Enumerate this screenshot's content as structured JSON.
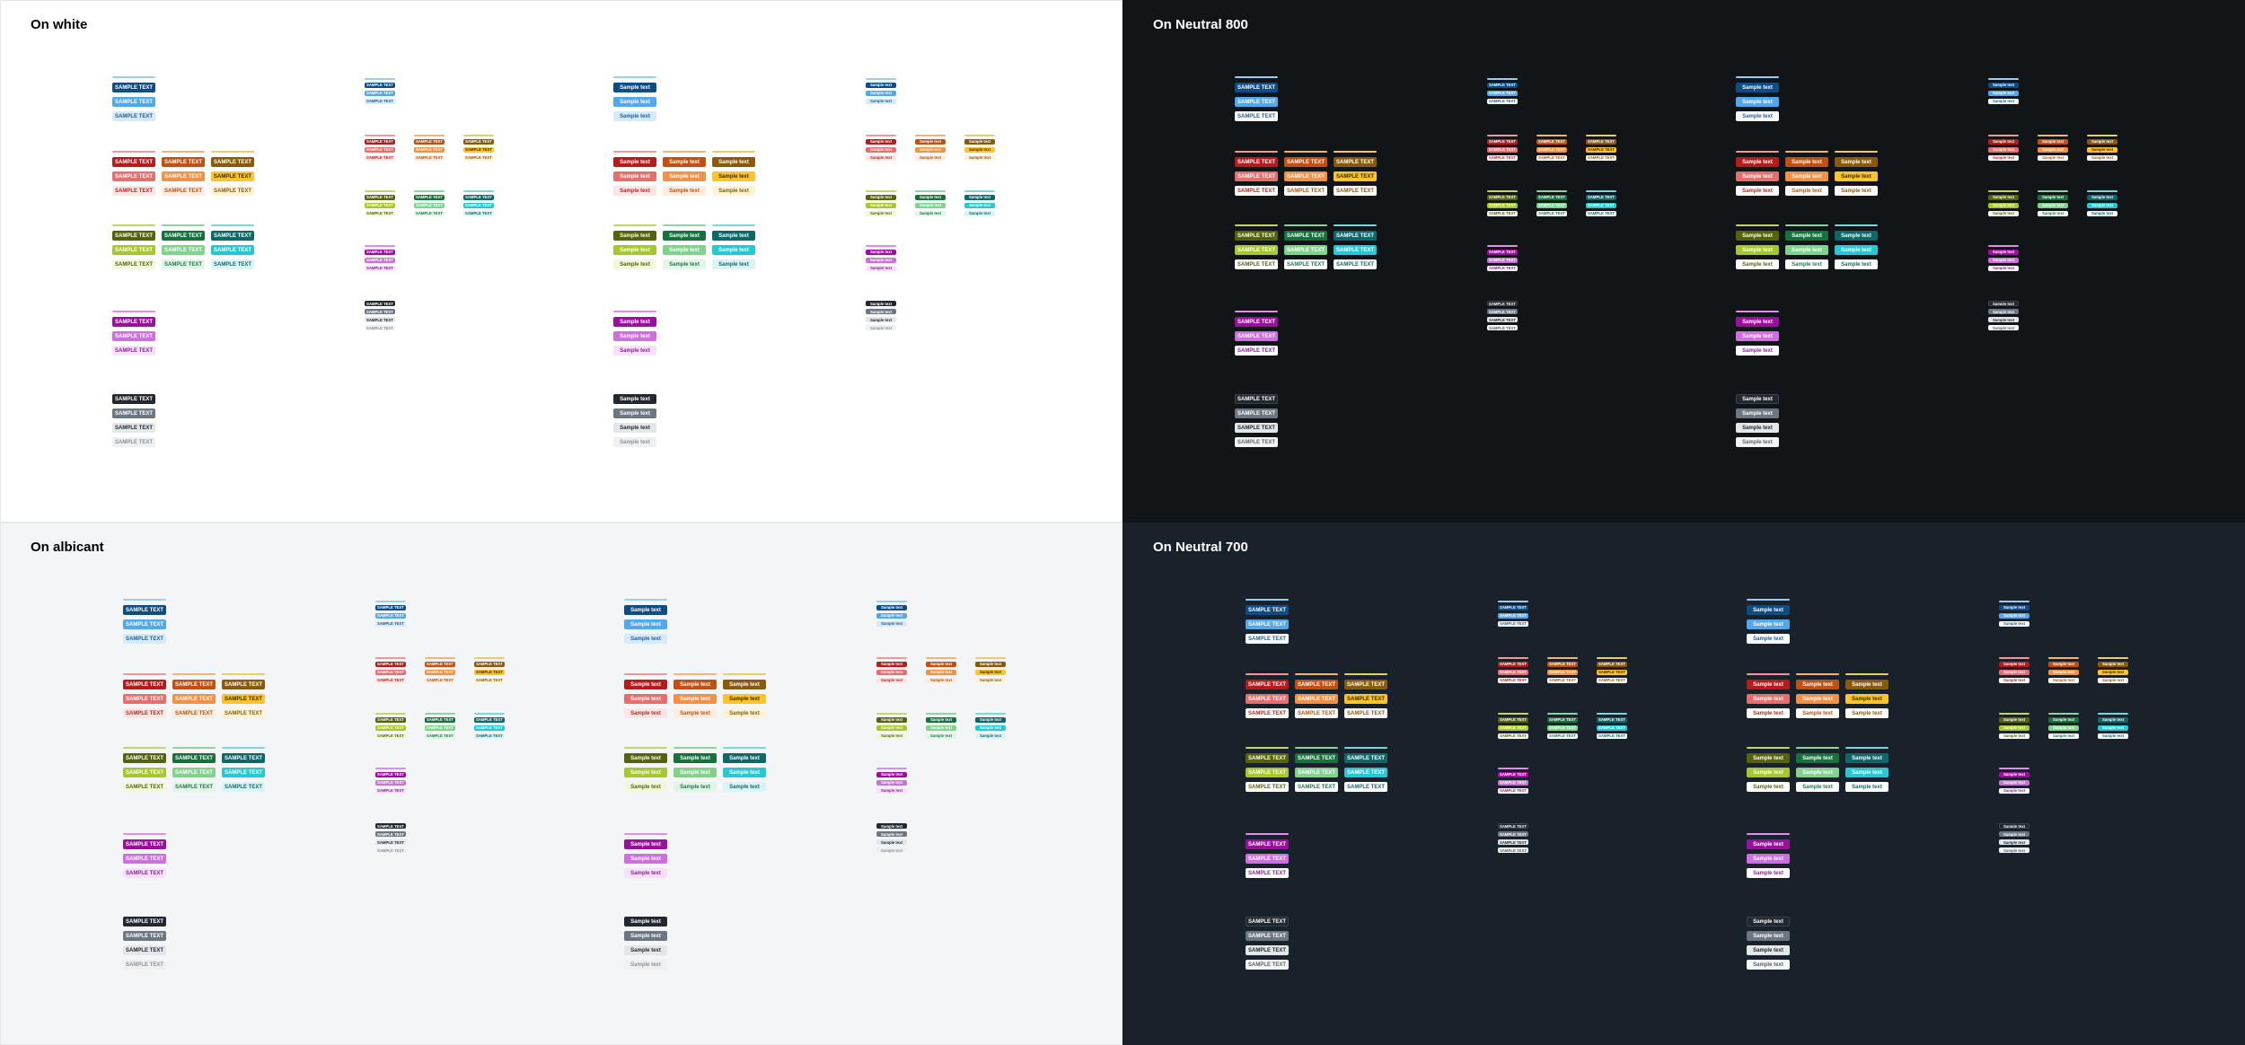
{
  "panels": [
    {
      "id": "white",
      "title": "On white",
      "bg": "#ffffff",
      "title_color": "#000000",
      "dark": false
    },
    {
      "id": "neutral800",
      "title": "On Neutral 800",
      "bg": "#111518",
      "title_color": "#ffffff",
      "dark": true
    },
    {
      "id": "albicant",
      "title": "On albicant",
      "bg": "#f4f5f7",
      "title_color": "#000000",
      "dark": false
    },
    {
      "id": "neutral700",
      "title": "On Neutral 700",
      "bg": "#19212a",
      "title_color": "#ffffff",
      "dark": true
    }
  ],
  "labels": {
    "upper": "SAMPLE TEXT",
    "title": "Sample text"
  },
  "palettes": {
    "blue": {
      "bar": "#9fcbee",
      "solid": "#0d4c84",
      "medium": "#52a8ee",
      "light": "#d6eaf9",
      "light_text": "#1d5e9a"
    },
    "red": {
      "bar": "#f19797",
      "solid": "#b71b1b",
      "medium": "#e56f6f",
      "light": "#fde5e5",
      "light_text": "#b3261e"
    },
    "orange": {
      "bar": "#f4b277",
      "solid": "#c4500e",
      "medium": "#f29143",
      "light": "#fdecdf",
      "light_text": "#b4520f"
    },
    "yellow": {
      "bar": "#eecb6a",
      "solid": "#8a5a09",
      "medium": "#fbc32c",
      "light": "#fdf3d6",
      "light_text": "#8a5a0a"
    },
    "olive": {
      "bar": "#c3d46c",
      "solid": "#55630b",
      "medium": "#a7c730",
      "light": "#f1f7d8",
      "light_text": "#55630b"
    },
    "green": {
      "bar": "#8ed3a1",
      "solid": "#16713d",
      "medium": "#82d28d",
      "light": "#e1f6e7",
      "light_text": "#1b7a44"
    },
    "teal": {
      "bar": "#7bd6dc",
      "solid": "#0e6768",
      "medium": "#26c8d3",
      "light": "#daf4f6",
      "light_text": "#0e6a6c"
    },
    "magenta": {
      "bar": "#e08de8",
      "solid": "#9b0e9e",
      "medium": "#cd6fde",
      "light": "#f6e1fa",
      "light_text": "#901b96"
    },
    "neutral": {
      "solid": "#22282f",
      "medium": "#6d7782",
      "light": "#e4e7ea",
      "pale": "#eef0f2",
      "pale_text": "#8a939c"
    }
  }
}
